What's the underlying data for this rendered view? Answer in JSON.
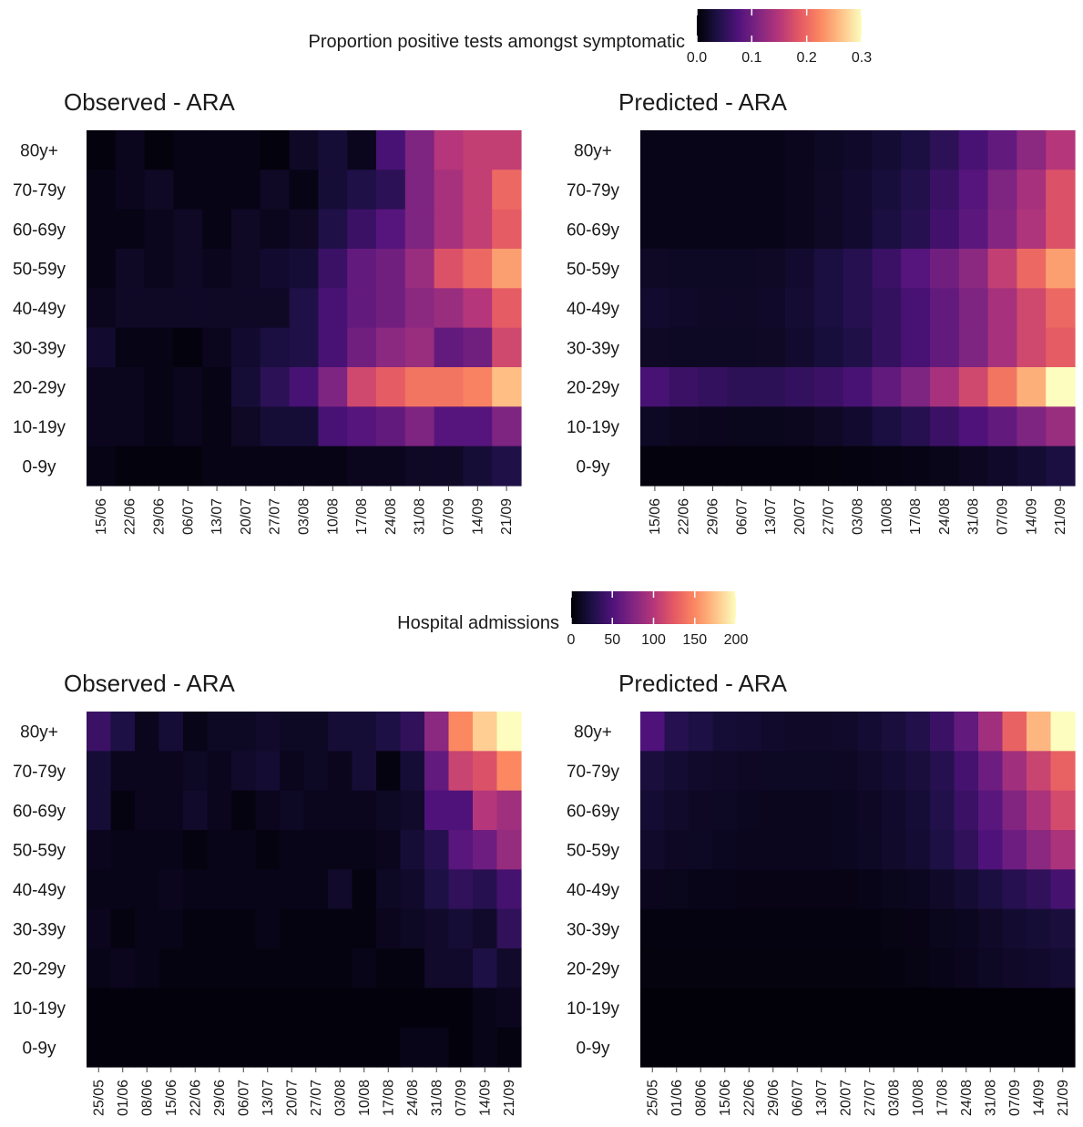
{
  "colormap": [
    "#000004",
    "#1c1044",
    "#4f127b",
    "#812581",
    "#b5367a",
    "#e55964",
    "#fb8861",
    "#fec287",
    "#fcfdbf"
  ],
  "chart_data": [
    {
      "type": "heatmap",
      "title": "Observed - ARA",
      "legend_title": "Proportion positive tests amongst symptomatic",
      "color_range": [
        0,
        0.3
      ],
      "legend_ticks": [
        "0.0",
        "0.1",
        "0.2",
        "0.3"
      ],
      "ylabels": [
        "80y+",
        "70-79y",
        "60-69y",
        "50-59y",
        "40-49y",
        "30-39y",
        "20-29y",
        "10-19y",
        "0-9y"
      ],
      "x": [
        "15/06",
        "22/06",
        "29/06",
        "06/07",
        "13/07",
        "20/07",
        "27/07",
        "03/08",
        "10/08",
        "17/08",
        "24/08",
        "31/08",
        "07/09",
        "14/09",
        "21/09"
      ],
      "values": [
        [
          0.005,
          0.015,
          0.005,
          0.01,
          0.01,
          0.01,
          0.005,
          0.02,
          0.03,
          0.015,
          0.07,
          0.11,
          0.15,
          0.16,
          0.16
        ],
        [
          0.01,
          0.015,
          0.02,
          0.01,
          0.01,
          0.01,
          0.02,
          0.01,
          0.03,
          0.04,
          0.05,
          0.11,
          0.14,
          0.16,
          0.2
        ],
        [
          0.01,
          0.01,
          0.015,
          0.02,
          0.01,
          0.02,
          0.015,
          0.02,
          0.04,
          0.06,
          0.08,
          0.11,
          0.14,
          0.16,
          0.19
        ],
        [
          0.01,
          0.02,
          0.015,
          0.02,
          0.015,
          0.02,
          0.025,
          0.03,
          0.06,
          0.09,
          0.1,
          0.13,
          0.18,
          0.2,
          0.24
        ],
        [
          0.015,
          0.02,
          0.02,
          0.02,
          0.02,
          0.02,
          0.02,
          0.04,
          0.07,
          0.09,
          0.1,
          0.12,
          0.13,
          0.15,
          0.19
        ],
        [
          0.025,
          0.01,
          0.01,
          0.005,
          0.015,
          0.025,
          0.035,
          0.04,
          0.07,
          0.1,
          0.12,
          0.13,
          0.09,
          0.1,
          0.17
        ],
        [
          0.015,
          0.015,
          0.01,
          0.015,
          0.01,
          0.03,
          0.05,
          0.07,
          0.11,
          0.17,
          0.19,
          0.21,
          0.21,
          0.22,
          0.26
        ],
        [
          0.015,
          0.015,
          0.01,
          0.015,
          0.01,
          0.02,
          0.03,
          0.03,
          0.07,
          0.08,
          0.09,
          0.11,
          0.08,
          0.08,
          0.11
        ],
        [
          0.01,
          0.005,
          0.005,
          0.005,
          0.01,
          0.01,
          0.01,
          0.01,
          0.01,
          0.015,
          0.015,
          0.02,
          0.02,
          0.03,
          0.04
        ]
      ]
    },
    {
      "type": "heatmap",
      "title": "Predicted - ARA",
      "color_range": [
        0,
        0.3
      ],
      "ylabels": [
        "80y+",
        "70-79y",
        "60-69y",
        "50-59y",
        "40-49y",
        "30-39y",
        "20-29y",
        "10-19y",
        "0-9y"
      ],
      "x": [
        "15/06",
        "22/06",
        "29/06",
        "06/07",
        "13/07",
        "20/07",
        "27/07",
        "03/08",
        "10/08",
        "17/08",
        "24/08",
        "31/08",
        "07/09",
        "14/09",
        "21/09"
      ],
      "values": [
        [
          0.012,
          0.012,
          0.012,
          0.012,
          0.012,
          0.015,
          0.018,
          0.022,
          0.028,
          0.035,
          0.05,
          0.07,
          0.09,
          0.12,
          0.15
        ],
        [
          0.012,
          0.012,
          0.012,
          0.012,
          0.012,
          0.015,
          0.02,
          0.025,
          0.032,
          0.042,
          0.06,
          0.08,
          0.11,
          0.14,
          0.18
        ],
        [
          0.012,
          0.012,
          0.012,
          0.012,
          0.012,
          0.015,
          0.02,
          0.025,
          0.035,
          0.045,
          0.065,
          0.085,
          0.115,
          0.145,
          0.18
        ],
        [
          0.02,
          0.018,
          0.018,
          0.018,
          0.02,
          0.025,
          0.035,
          0.045,
          0.06,
          0.08,
          0.1,
          0.12,
          0.16,
          0.2,
          0.24
        ],
        [
          0.025,
          0.022,
          0.02,
          0.02,
          0.022,
          0.028,
          0.035,
          0.045,
          0.055,
          0.07,
          0.09,
          0.11,
          0.14,
          0.17,
          0.2
        ],
        [
          0.02,
          0.018,
          0.018,
          0.018,
          0.02,
          0.025,
          0.032,
          0.04,
          0.055,
          0.07,
          0.09,
          0.11,
          0.14,
          0.17,
          0.19
        ],
        [
          0.07,
          0.06,
          0.055,
          0.05,
          0.05,
          0.055,
          0.06,
          0.07,
          0.09,
          0.11,
          0.14,
          0.17,
          0.21,
          0.25,
          0.3
        ],
        [
          0.018,
          0.016,
          0.015,
          0.014,
          0.014,
          0.016,
          0.02,
          0.025,
          0.035,
          0.045,
          0.06,
          0.075,
          0.09,
          0.11,
          0.13
        ],
        [
          0.005,
          0.005,
          0.005,
          0.005,
          0.005,
          0.005,
          0.006,
          0.007,
          0.008,
          0.01,
          0.013,
          0.017,
          0.022,
          0.028,
          0.035
        ]
      ]
    },
    {
      "type": "heatmap",
      "title": "Observed - ARA",
      "legend_title": "Hospital admissions",
      "color_range": [
        0,
        200
      ],
      "legend_ticks": [
        "0",
        "50",
        "100",
        "150",
        "200"
      ],
      "ylabels": [
        "80y+",
        "70-79y",
        "60-69y",
        "50-59y",
        "40-49y",
        "30-39y",
        "20-29y",
        "10-19y",
        "0-9y"
      ],
      "x": [
        "25/05",
        "01/06",
        "08/06",
        "15/06",
        "22/06",
        "29/06",
        "06/07",
        "13/07",
        "20/07",
        "27/07",
        "03/08",
        "10/08",
        "17/08",
        "24/08",
        "31/08",
        "07/09",
        "14/09",
        "21/09"
      ],
      "values": [
        [
          40,
          25,
          10,
          20,
          8,
          12,
          12,
          15,
          12,
          12,
          20,
          20,
          25,
          35,
          80,
          150,
          180,
          200
        ],
        [
          20,
          10,
          10,
          10,
          12,
          10,
          15,
          18,
          10,
          12,
          10,
          20,
          5,
          20,
          60,
          110,
          120,
          150
        ],
        [
          20,
          5,
          10,
          10,
          15,
          10,
          5,
          10,
          12,
          10,
          10,
          10,
          12,
          15,
          50,
          50,
          100,
          90
        ],
        [
          10,
          8,
          8,
          8,
          5,
          8,
          8,
          5,
          8,
          8,
          8,
          8,
          10,
          20,
          30,
          55,
          65,
          85
        ],
        [
          8,
          8,
          8,
          10,
          8,
          8,
          8,
          8,
          8,
          8,
          15,
          5,
          12,
          15,
          25,
          35,
          30,
          45
        ],
        [
          10,
          5,
          8,
          8,
          5,
          5,
          5,
          8,
          5,
          5,
          5,
          5,
          10,
          12,
          15,
          20,
          15,
          35
        ],
        [
          8,
          10,
          8,
          5,
          5,
          5,
          5,
          5,
          5,
          5,
          5,
          8,
          5,
          5,
          15,
          15,
          25,
          15
        ],
        [
          3,
          3,
          3,
          3,
          3,
          3,
          3,
          3,
          3,
          3,
          3,
          3,
          3,
          3,
          3,
          3,
          8,
          10
        ],
        [
          3,
          3,
          3,
          3,
          3,
          3,
          3,
          3,
          3,
          3,
          3,
          3,
          3,
          8,
          8,
          3,
          8,
          5
        ]
      ]
    },
    {
      "type": "heatmap",
      "title": "Predicted - ARA",
      "color_range": [
        0,
        200
      ],
      "ylabels": [
        "80y+",
        "70-79y",
        "60-69y",
        "50-59y",
        "40-49y",
        "30-39y",
        "20-29y",
        "10-19y",
        "0-9y"
      ],
      "x": [
        "25/05",
        "01/06",
        "08/06",
        "15/06",
        "22/06",
        "29/06",
        "06/07",
        "13/07",
        "20/07",
        "27/07",
        "03/08",
        "10/08",
        "17/08",
        "24/08",
        "31/08",
        "07/09",
        "14/09",
        "21/09"
      ],
      "values": [
        [
          50,
          30,
          25,
          20,
          18,
          16,
          14,
          14,
          15,
          18,
          22,
          28,
          40,
          60,
          90,
          130,
          170,
          200
        ],
        [
          22,
          18,
          15,
          14,
          13,
          12,
          12,
          12,
          13,
          15,
          18,
          22,
          30,
          45,
          65,
          90,
          110,
          130
        ],
        [
          18,
          15,
          13,
          12,
          11,
          10,
          10,
          10,
          11,
          13,
          16,
          20,
          28,
          40,
          55,
          75,
          95,
          115
        ],
        [
          15,
          13,
          12,
          11,
          10,
          10,
          10,
          10,
          11,
          12,
          15,
          18,
          25,
          35,
          50,
          65,
          80,
          95
        ],
        [
          10,
          9,
          8,
          8,
          7,
          7,
          7,
          7,
          7,
          8,
          9,
          11,
          14,
          18,
          24,
          30,
          35,
          45
        ],
        [
          5,
          5,
          5,
          5,
          5,
          5,
          5,
          5,
          5,
          5,
          6,
          7,
          9,
          11,
          14,
          17,
          20,
          22
        ],
        [
          4,
          4,
          4,
          4,
          4,
          4,
          4,
          4,
          4,
          4,
          5,
          6,
          8,
          10,
          12,
          14,
          16,
          18
        ],
        [
          2,
          2,
          2,
          2,
          2,
          2,
          2,
          2,
          2,
          2,
          2,
          2,
          2,
          2,
          2,
          2,
          2,
          2
        ],
        [
          2,
          2,
          2,
          2,
          2,
          2,
          2,
          2,
          2,
          2,
          2,
          2,
          2,
          2,
          2,
          2,
          2,
          2
        ]
      ]
    }
  ]
}
